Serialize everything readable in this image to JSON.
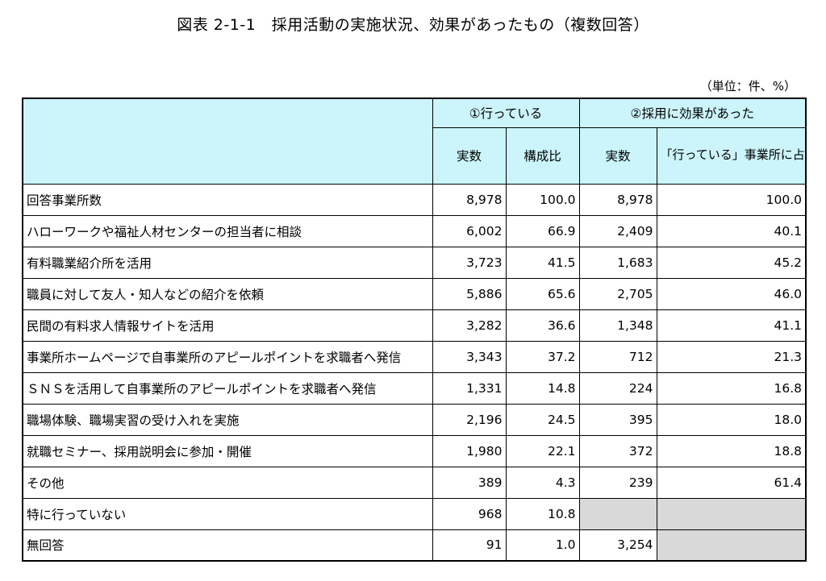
{
  "title": "図表 2-1-1　採用活動の実施状況、効果があったもの（複数回答）",
  "unit": "（単位：件、%）",
  "header": {
    "group1": "①行っている",
    "group2": "②採用に効果があった",
    "col_count1": "実数",
    "col_ratio": "構成比",
    "col_count2": "実数",
    "col_share": "「行っている」事業所に占める「効果があった」割合"
  },
  "rows": [
    {
      "label": "回答事業所数",
      "count1": "8,978",
      "ratio": "100.0",
      "count2": "8,978",
      "share": "100.0"
    },
    {
      "label": "ハローワークや福祉人材センターの担当者に相談",
      "count1": "6,002",
      "ratio": "66.9",
      "count2": "2,409",
      "share": "40.1"
    },
    {
      "label": "有料職業紹介所を活用",
      "count1": "3,723",
      "ratio": "41.5",
      "count2": "1,683",
      "share": "45.2"
    },
    {
      "label": "職員に対して友人・知人などの紹介を依頼",
      "count1": "5,886",
      "ratio": "65.6",
      "count2": "2,705",
      "share": "46.0"
    },
    {
      "label": "民間の有料求人情報サイトを活用",
      "count1": "3,282",
      "ratio": "36.6",
      "count2": "1,348",
      "share": "41.1"
    },
    {
      "label": "事業所ホームページで自事業所のアピールポイントを求職者へ発信",
      "count1": "3,343",
      "ratio": "37.2",
      "count2": "712",
      "share": "21.3"
    },
    {
      "label": "ＳＮＳを活用して自事業所のアピールポイントを求職者へ発信",
      "count1": "1,331",
      "ratio": "14.8",
      "count2": "224",
      "share": "16.8"
    },
    {
      "label": "職場体験、職場実習の受け入れを実施",
      "count1": "2,196",
      "ratio": "24.5",
      "count2": "395",
      "share": "18.0"
    },
    {
      "label": "就職セミナー、採用説明会に参加・開催",
      "count1": "1,980",
      "ratio": "22.1",
      "count2": "372",
      "share": "18.8"
    },
    {
      "label": "その他",
      "count1": "389",
      "ratio": "4.3",
      "count2": "239",
      "share": "61.4"
    },
    {
      "label": "特に行っていない",
      "count1": "968",
      "ratio": "10.8",
      "count2": "",
      "share": ""
    },
    {
      "label": "無回答",
      "count1": "91",
      "ratio": "1.0",
      "count2": "3,254",
      "share": ""
    }
  ]
}
